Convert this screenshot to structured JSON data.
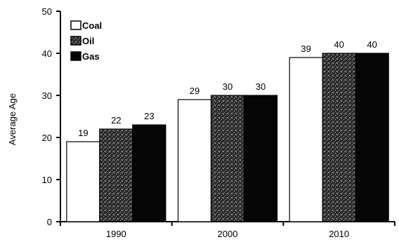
{
  "chart_data": {
    "type": "bar",
    "title": "",
    "xlabel": "",
    "ylabel": "Average Age",
    "categories": [
      "1990",
      "2000",
      "2010"
    ],
    "series": [
      {
        "name": "Coal",
        "values": [
          19,
          29,
          39
        ],
        "fill": "#ffffff",
        "pattern": "solid"
      },
      {
        "name": "Oil",
        "values": [
          22,
          30,
          40
        ],
        "fill": "#2b2b2b",
        "pattern": "speckle"
      },
      {
        "name": "Gas",
        "values": [
          23,
          30,
          40
        ],
        "fill": "#050505",
        "pattern": "solid"
      }
    ],
    "ylim": [
      0,
      50
    ],
    "yticks": [
      0,
      10,
      20,
      30,
      40,
      50
    ],
    "grid": false,
    "legend_position": "top-left",
    "data_labels": true
  }
}
